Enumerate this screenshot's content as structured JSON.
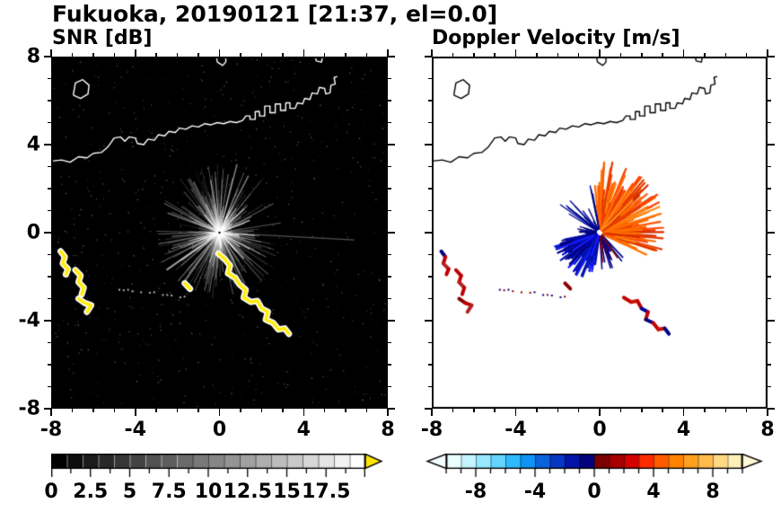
{
  "title": "Fukuoka, 20190121 [21:37, el=0.0]",
  "map": {
    "coastlines": [
      [
        [
          -8,
          3.25
        ],
        [
          -7.5,
          3.3
        ],
        [
          -7.1,
          3.2
        ],
        [
          -6.7,
          3.45
        ],
        [
          -6.3,
          3.4
        ],
        [
          -6.0,
          3.6
        ],
        [
          -5.6,
          3.65
        ],
        [
          -5.3,
          3.9
        ],
        [
          -5.0,
          4.3
        ],
        [
          -4.7,
          4.35
        ],
        [
          -4.5,
          4.15
        ],
        [
          -4.3,
          4.35
        ],
        [
          -4.0,
          4.3
        ],
        [
          -3.9,
          4.05
        ],
        [
          -3.6,
          4.0
        ],
        [
          -3.4,
          4.25
        ],
        [
          -3.1,
          4.2
        ],
        [
          -2.9,
          4.45
        ],
        [
          -2.6,
          4.4
        ],
        [
          -2.4,
          4.6
        ],
        [
          -2.1,
          4.55
        ],
        [
          -1.9,
          4.75
        ],
        [
          -1.6,
          4.7
        ],
        [
          -1.3,
          4.85
        ],
        [
          -1.0,
          4.8
        ],
        [
          -0.7,
          4.95
        ],
        [
          -0.4,
          4.9
        ],
        [
          -0.1,
          5.0
        ],
        [
          0.2,
          4.95
        ],
        [
          0.5,
          5.05
        ],
        [
          0.8,
          5.0
        ],
        [
          1.1,
          5.1
        ],
        [
          1.25,
          5.3
        ],
        [
          1.45,
          5.3
        ],
        [
          1.45,
          5.15
        ],
        [
          1.7,
          5.15
        ],
        [
          1.7,
          5.5
        ],
        [
          1.9,
          5.5
        ],
        [
          1.9,
          5.3
        ],
        [
          2.15,
          5.3
        ],
        [
          2.15,
          5.75
        ],
        [
          2.4,
          5.75
        ],
        [
          2.4,
          5.45
        ],
        [
          2.65,
          5.45
        ],
        [
          2.65,
          5.85
        ],
        [
          2.9,
          5.85
        ],
        [
          2.9,
          5.55
        ],
        [
          3.15,
          5.55
        ],
        [
          3.15,
          5.9
        ],
        [
          3.35,
          5.9
        ],
        [
          3.35,
          5.65
        ],
        [
          3.6,
          5.65
        ],
        [
          3.7,
          5.9
        ],
        [
          3.95,
          5.85
        ],
        [
          4.05,
          6.1
        ],
        [
          4.3,
          6.05
        ],
        [
          4.4,
          6.35
        ],
        [
          4.65,
          6.3
        ],
        [
          4.75,
          6.6
        ],
        [
          5.0,
          6.55
        ],
        [
          5.05,
          6.3
        ],
        [
          5.25,
          6.35
        ],
        [
          5.3,
          6.7
        ],
        [
          5.5,
          6.75
        ],
        [
          5.45,
          7.05
        ],
        [
          5.6,
          7.1
        ]
      ],
      [
        [
          -6.95,
          6.25
        ],
        [
          -6.6,
          6.1
        ],
        [
          -6.25,
          6.3
        ],
        [
          -6.2,
          6.7
        ],
        [
          -6.5,
          6.95
        ],
        [
          -6.85,
          6.8
        ],
        [
          -6.95,
          6.25
        ]
      ],
      [
        [
          -0.15,
          8.0
        ],
        [
          -0.1,
          7.75
        ],
        [
          0.15,
          7.6
        ],
        [
          0.3,
          7.75
        ],
        [
          0.3,
          8.0
        ]
      ],
      [
        [
          4.55,
          8.0
        ],
        [
          4.6,
          7.8
        ],
        [
          4.85,
          7.75
        ],
        [
          4.9,
          8.0
        ]
      ]
    ],
    "echo_chains": {
      "A": [
        [
          -7.55,
          -0.85
        ],
        [
          -7.35,
          -1.1
        ],
        [
          -7.45,
          -1.4
        ],
        [
          -7.2,
          -1.65
        ],
        [
          -7.3,
          -1.9
        ]
      ],
      "B": [
        [
          -6.85,
          -1.7
        ],
        [
          -6.6,
          -1.95
        ],
        [
          -6.7,
          -2.25
        ],
        [
          -6.45,
          -2.5
        ],
        [
          -6.55,
          -2.8
        ]
      ],
      "C": [
        [
          -6.7,
          -3.0
        ],
        [
          -6.4,
          -3.2
        ],
        [
          -6.1,
          -3.3
        ],
        [
          -6.3,
          -3.6
        ]
      ],
      "D": [
        [
          -0.05,
          -0.95
        ],
        [
          0.25,
          -1.2
        ],
        [
          0.5,
          -1.5
        ],
        [
          0.4,
          -1.85
        ],
        [
          0.75,
          -2.05
        ],
        [
          0.95,
          -2.35
        ],
        [
          1.25,
          -2.6
        ],
        [
          1.15,
          -2.95
        ],
        [
          1.5,
          -3.15
        ],
        [
          1.8,
          -3.1
        ],
        [
          2.0,
          -3.45
        ],
        [
          2.3,
          -3.6
        ],
        [
          2.2,
          -3.95
        ],
        [
          2.55,
          -4.1
        ],
        [
          2.8,
          -4.4
        ],
        [
          3.1,
          -4.35
        ],
        [
          3.3,
          -4.6
        ]
      ],
      "E": [
        [
          -1.65,
          -2.3
        ],
        [
          -1.4,
          -2.55
        ]
      ]
    },
    "dot_trail": {
      "from": [
        -4.8,
        -2.5
      ],
      "to": [
        -1.7,
        -2.9
      ],
      "count": 16,
      "seed": 3
    }
  },
  "chart_data": [
    {
      "type": "heatmap",
      "id": "snr",
      "title": "SNR [dB]",
      "xlim": [
        -8,
        8
      ],
      "ylim": [
        -8,
        8
      ],
      "xticks": [
        -8,
        -4,
        0,
        4,
        8
      ],
      "yticks": [
        -8,
        -4,
        0,
        4,
        8
      ],
      "x_tick_labels": [
        "-8",
        "-4",
        "0",
        "4",
        "8"
      ],
      "y_tick_labels": [
        "-8",
        "-4",
        "0",
        "4",
        "8"
      ],
      "grid": false,
      "background": "#000000",
      "coast_color": "#ffffff",
      "colorbar": {
        "min": 0,
        "max": 20,
        "type": "grayscale",
        "labels": [
          "0",
          "2.5",
          "5",
          "7.5",
          "10",
          "12.5",
          "15",
          "17.5"
        ],
        "label_values": [
          0,
          2.5,
          5,
          7.5,
          10,
          12.5,
          15,
          17.5
        ],
        "arrow_right": "#ffe600"
      },
      "features": {
        "speckle": {
          "count": 700,
          "seed": 5,
          "alpha": 0.35
        },
        "rays": {
          "count": 250,
          "seed": 7,
          "rmin": 0.5,
          "rmax": 3.1,
          "alpha_min": 0.05,
          "alpha_max": 0.4
        },
        "inner_rays": {
          "count": 90,
          "seed": 13,
          "rmin": 0.3,
          "rmax": 1.7,
          "alpha_min": 0.2,
          "alpha_max": 0.7
        },
        "bright_rays": [
          {
            "angle": -3,
            "len": 6.4,
            "alpha": 0.32,
            "lw": 1.3
          },
          {
            "angle": 214,
            "len": 3.0,
            "alpha": 0.5,
            "lw": 2
          },
          {
            "angle": 233,
            "len": 2.7,
            "alpha": 0.45,
            "lw": 2
          },
          {
            "angle": 160,
            "len": 2.6,
            "alpha": 0.4,
            "lw": 1.6
          },
          {
            "angle": 62,
            "len": 2.9,
            "alpha": 0.45,
            "lw": 1.7
          },
          {
            "angle": 118,
            "len": 2.6,
            "alpha": 0.4,
            "lw": 1.6
          },
          {
            "angle": 75,
            "len": 3.2,
            "alpha": 0.5,
            "lw": 1.5
          },
          {
            "angle": 100,
            "len": 2.4,
            "alpha": 0.45,
            "lw": 1.5
          },
          {
            "angle": -55,
            "len": 2.2,
            "alpha": 0.3,
            "lw": 1.4
          }
        ],
        "center_dot": {
          "r": 3,
          "color": "#ffffff"
        },
        "echo_chains": [
          {
            "id": "A"
          },
          {
            "id": "B"
          },
          {
            "id": "C"
          },
          {
            "id": "D"
          },
          {
            "id": "E"
          }
        ],
        "echo_style": {
          "casing": "#ffffff",
          "casing_lw": 7,
          "core": "#ffec00",
          "core_lw": 3.5
        },
        "trail_colors": [
          "rgba(255,255,255,0.7)"
        ]
      }
    },
    {
      "type": "heatmap",
      "id": "vel",
      "title": "Doppler Velocity [m/s]",
      "xlim": [
        -8,
        8
      ],
      "ylim": [
        -8,
        8
      ],
      "xticks": [
        -8,
        -4,
        0,
        4,
        8
      ],
      "yticks": [
        -8,
        -4,
        0,
        4,
        8
      ],
      "x_tick_labels": [
        "-8",
        "-4",
        "0",
        "4",
        "8"
      ],
      "y_tick_labels": [
        "-8",
        "-4",
        "0",
        "4",
        "8"
      ],
      "grid": false,
      "background": "#ffffff",
      "coast_color": "#000000",
      "colorbar": {
        "min": -10,
        "max": 10,
        "type": "segments",
        "labels": [
          "-8",
          "-4",
          "0",
          "4",
          "8"
        ],
        "label_values": [
          -8,
          -4,
          0,
          4,
          8
        ],
        "segments": [
          "#eaffff",
          "#c4f4ff",
          "#96e7ff",
          "#62d4ff",
          "#2fb9ff",
          "#0f93f5",
          "#0a63dd",
          "#0637c4",
          "#0414a8",
          "#02037d",
          "#7a0000",
          "#a80000",
          "#d40000",
          "#ff2a00",
          "#ff5c00",
          "#ff8200",
          "#ffa01e",
          "#ffbc4d",
          "#ffd884",
          "#ffefb8"
        ],
        "arrow_left": "#f4ffff",
        "arrow_right": "#fff8d8"
      },
      "features": {
        "fans": [
          {
            "a0": -25,
            "a1": 96,
            "count": 240,
            "rmin": 0.35,
            "rmax": 3.25,
            "pow": 1.1,
            "colors": [
              "#ff5400",
              "#ff6a00",
              "#ff4500",
              "#e63900",
              "#ff8c1a",
              "#ff7300",
              "#d42f00"
            ],
            "lw": 2.2,
            "seed": 11
          },
          {
            "a0": 190,
            "a1": 262,
            "count": 130,
            "rmin": 0.3,
            "rmax": 2.25,
            "pow": 1.0,
            "colors": [
              "#000d99",
              "#0000cd",
              "#001bb3",
              "#000080",
              "#1a1aff"
            ],
            "lw": 2.2,
            "seed": 23
          },
          {
            "a0": 98,
            "a1": 152,
            "count": 18,
            "rmin": 0.5,
            "rmax": 2.3,
            "pow": 1.0,
            "colors": [
              "#000080",
              "#000d99"
            ],
            "lw": 1.4,
            "seed": 31
          },
          {
            "a0": -95,
            "a1": -45,
            "count": 26,
            "rmin": 0.3,
            "rmax": 1.7,
            "pow": 1.0,
            "colors": [
              "#000080",
              "#0a0a99",
              "#8b0000"
            ],
            "lw": 1.6,
            "seed": 37
          },
          {
            "a0": 163,
            "a1": 186,
            "count": 12,
            "rmin": 0.25,
            "rmax": 1.1,
            "pow": 1.0,
            "colors": [
              "#000080"
            ],
            "lw": 1.3,
            "seed": 41
          }
        ],
        "echo_chains": [
          {
            "id": "A"
          },
          {
            "id": "B"
          },
          {
            "id": "C"
          },
          {
            "id": "D",
            "from": 7
          },
          {
            "id": "E"
          }
        ],
        "echo_palette": [
          "#c00000",
          "#8b0000",
          "#b22222",
          "#000080",
          "#cc1100",
          "#000099"
        ],
        "echo_lw": 4,
        "trail_colors": [
          "#000080",
          "#8b0000"
        ]
      }
    }
  ]
}
